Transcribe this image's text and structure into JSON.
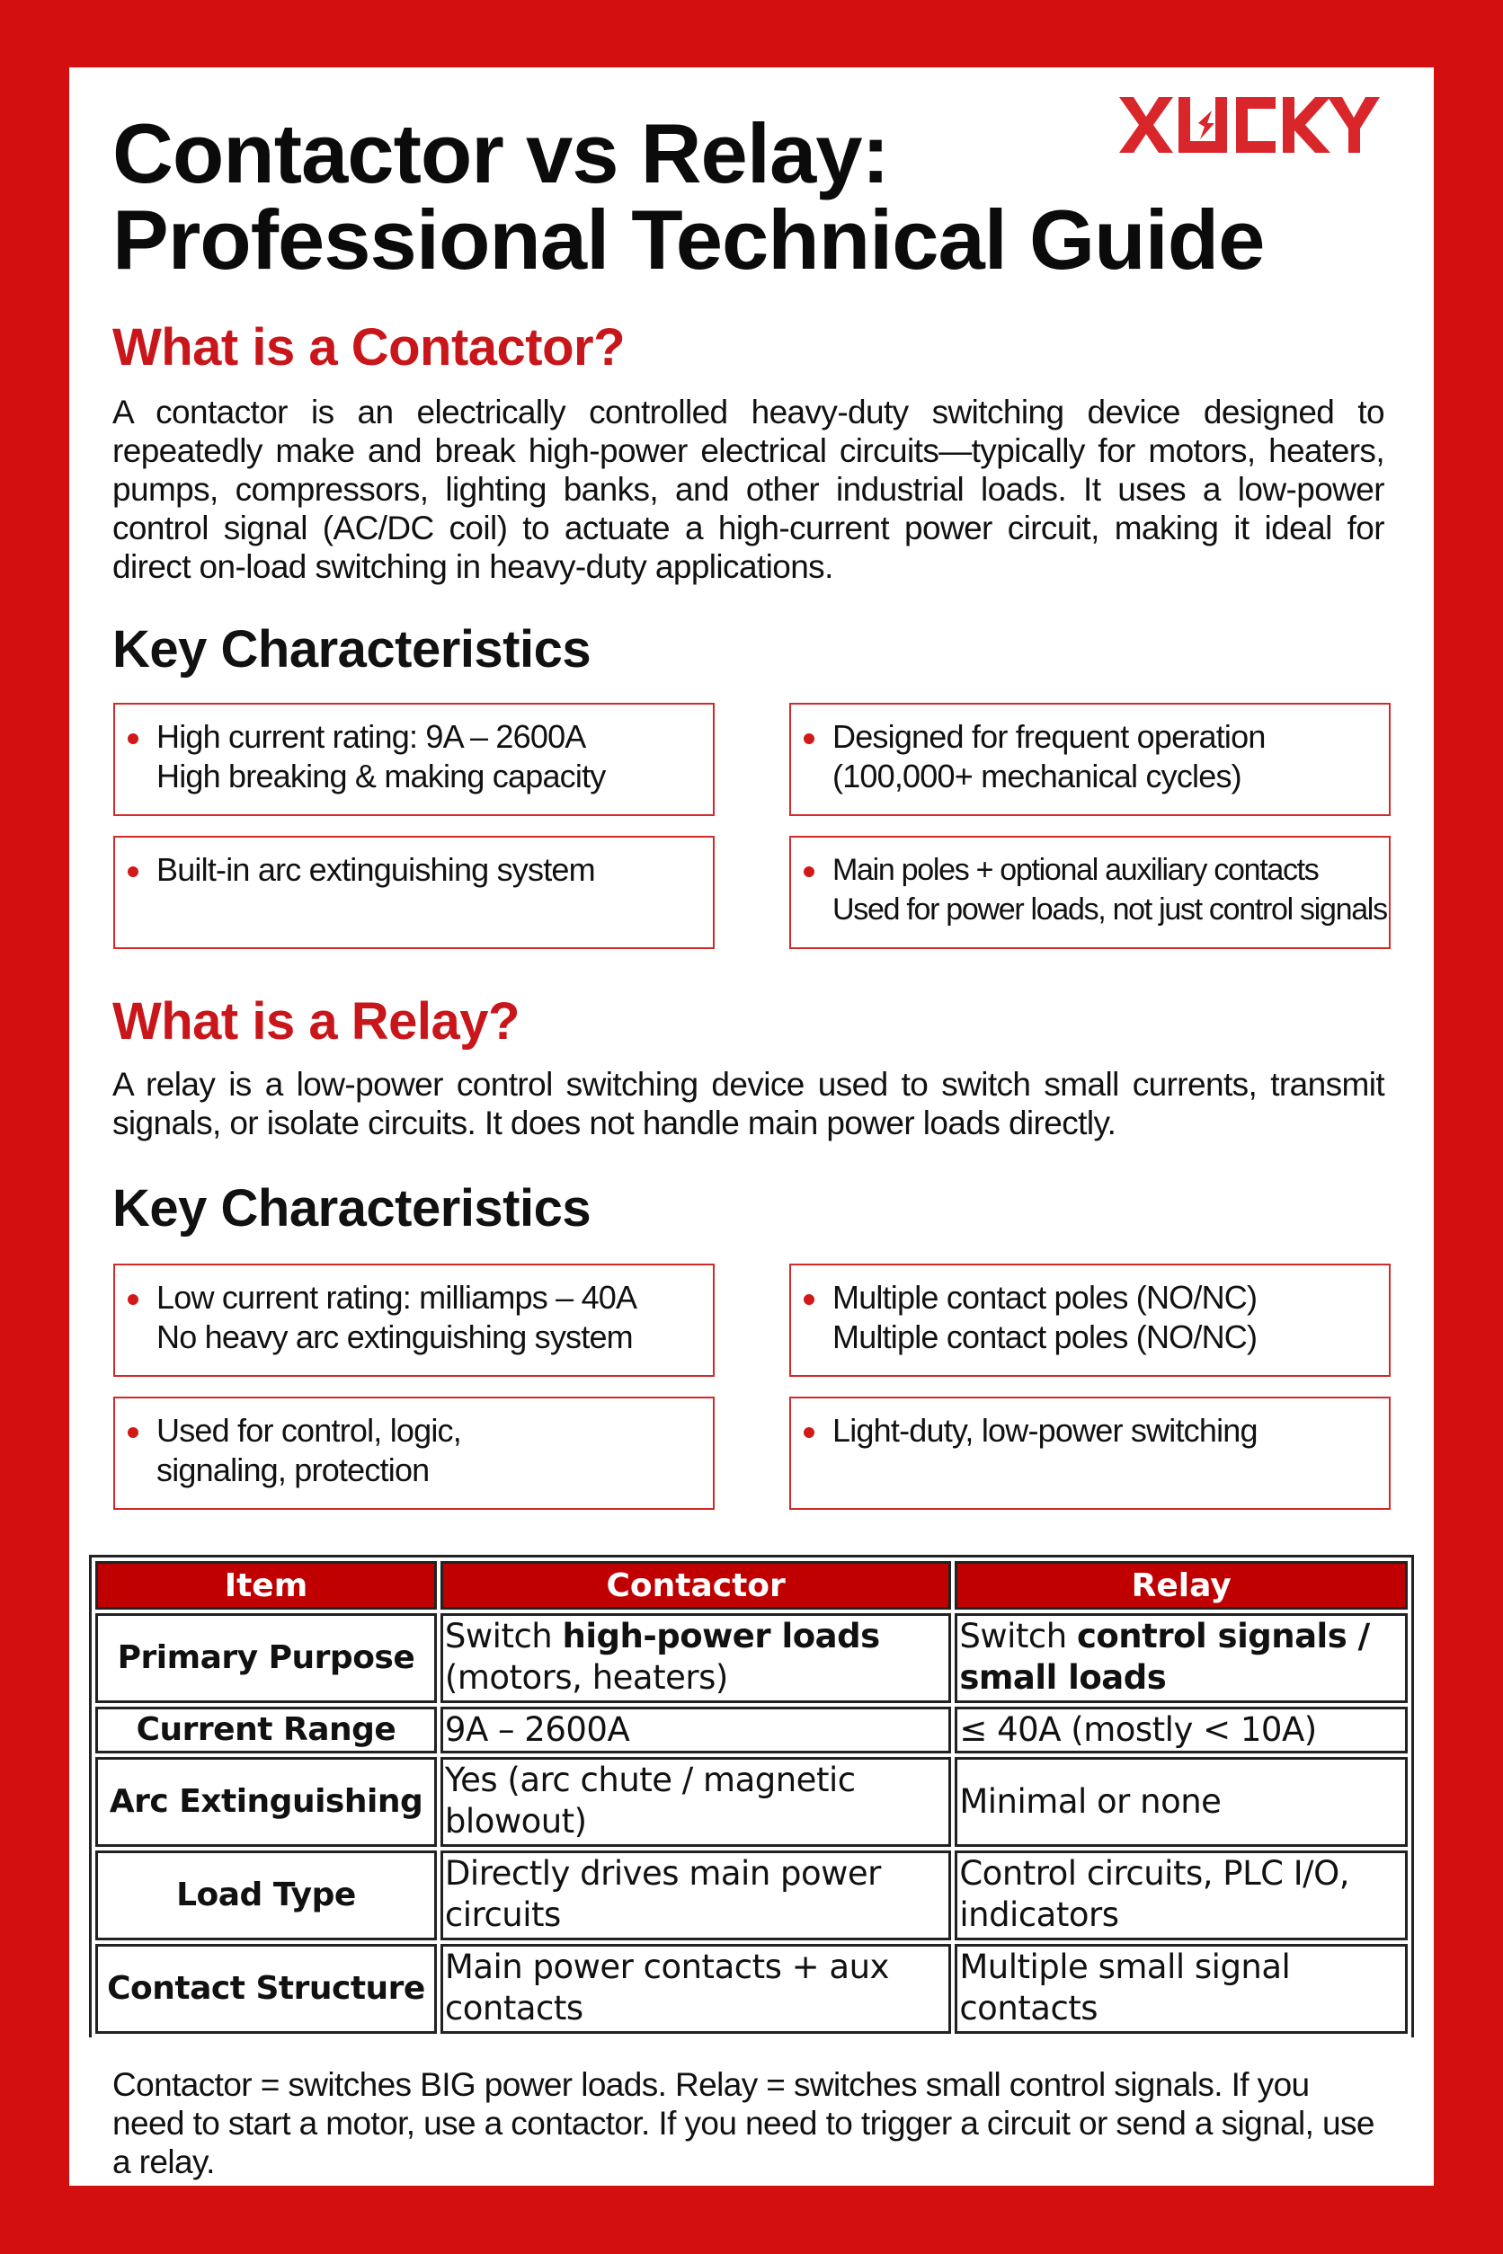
{
  "title": {
    "line1": "Contactor vs Relay:",
    "line2": "Professional Technical Guide"
  },
  "logo": "XUCKY",
  "colors": {
    "frame": "#d40f0f",
    "accent": "#c8161a",
    "table_header": "#c00000"
  },
  "contactor": {
    "heading": "What is a Contactor?",
    "description": "A contactor is an electrically controlled heavy-duty switching device designed to repeatedly make and break high-power electrical circuits—typically for motors, heaters, pumps, compressors, lighting banks, and other industrial loads. It uses a low-power control signal (AC/DC coil) to actuate a high-current power circuit, making it ideal for direct on-load switching in heavy-duty applications.",
    "key_heading": "Key Characteristics",
    "cards": [
      {
        "line1": "High current rating: 9A – 2600A",
        "line2": "High breaking & making capacity"
      },
      {
        "line1": "Designed for frequent operation",
        "line2": "(100,000+ mechanical cycles)"
      },
      {
        "line1": "Built-in arc extinguishing system",
        "line2": ""
      },
      {
        "line1": "Main poles + optional auxiliary contacts",
        "line2": "Used for power loads, not just control signals"
      }
    ]
  },
  "relay": {
    "heading": "What is a Relay?",
    "description": "A relay is a low-power control switching device used to switch small currents, transmit signals, or isolate circuits. It does not handle main power loads directly.",
    "key_heading": "Key Characteristics",
    "cards": [
      {
        "line1": "Low current rating: milliamps – 40A",
        "line2": "No heavy arc extinguishing system"
      },
      {
        "line1": "Multiple contact poles (NO/NC)",
        "line2": "Multiple contact poles (NO/NC)"
      },
      {
        "line1": "Used for control, logic,",
        "line2": "signaling, protection"
      },
      {
        "line1": "Light-duty, low-power switching",
        "line2": ""
      }
    ]
  },
  "table": {
    "headers": [
      "Item",
      "Contactor",
      "Relay"
    ],
    "rows": [
      {
        "item": "Primary Purpose",
        "contactor_pre": "Switch ",
        "contactor_bold": "high-power loads",
        "contactor_post": " (motors, heaters)",
        "relay_pre": "Switch ",
        "relay_bold": "control signals / small loads",
        "relay_post": ""
      },
      {
        "item": "Current Range",
        "contactor_pre": "9A – 2600A",
        "relay_pre": "≤ 40A (mostly < 10A)"
      },
      {
        "item": "Arc Extinguishing",
        "contactor_pre": "Yes (arc chute / magnetic blowout)",
        "relay_pre": "Minimal or none"
      },
      {
        "item": "Load Type",
        "contactor_pre": "Directly drives main power circuits",
        "relay_pre": "Control circuits, PLC I/O, indicators"
      },
      {
        "item": "Contact Structure",
        "contactor_pre": "Main power contacts + aux contacts",
        "relay_pre": "Multiple small signal contacts"
      }
    ]
  },
  "footer": "Contactor = switches BIG power loads. Relay = switches small control signals. If you need to start a motor, use a contactor. If you need to trigger a circuit or send a signal, use a relay."
}
